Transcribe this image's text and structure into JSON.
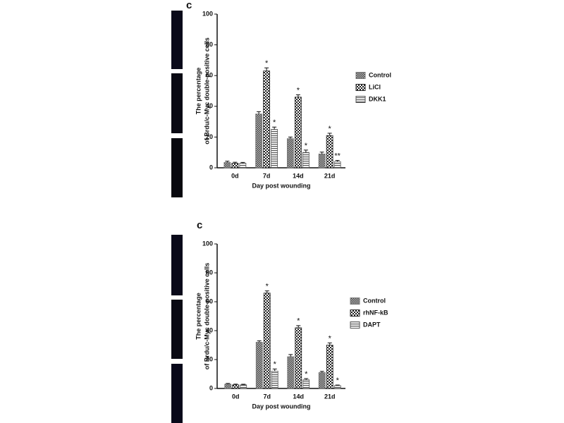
{
  "chart_data": [
    {
      "type": "bar",
      "title": "c",
      "ylabel": [
        "The percentage",
        "of Brdu/c-Myc double-positive cells"
      ],
      "xlabel": "Day post wounding",
      "categories": [
        "0d",
        "7d",
        "14d",
        "21d"
      ],
      "series": [
        {
          "name": "Control",
          "color": "#777777",
          "pattern": "dots",
          "values": [
            3.5,
            35,
            19,
            9
          ],
          "errors": [
            0.8,
            1.5,
            1,
            1.2
          ],
          "significance": [
            null,
            null,
            null,
            null
          ]
        },
        {
          "name": "LiCl",
          "color": "#222222",
          "pattern": "cross",
          "values": [
            3,
            63,
            46,
            21
          ],
          "errors": [
            0.6,
            2,
            1.5,
            1.5
          ],
          "significance": [
            null,
            "*",
            "*",
            "*"
          ]
        },
        {
          "name": "DKK1",
          "color": "#555555",
          "pattern": "hlines",
          "values": [
            3,
            25,
            10,
            4
          ],
          "errors": [
            0.5,
            1.5,
            1.5,
            0.8
          ],
          "significance": [
            null,
            "*",
            "*",
            "**"
          ]
        }
      ],
      "ylim": [
        0,
        100
      ],
      "yticks": [
        0,
        20,
        40,
        60,
        80,
        100
      ],
      "grid": false,
      "legend": "right"
    },
    {
      "type": "bar",
      "title": "c",
      "ylabel": [
        "The percentage",
        "of Brdu/c-Myc double-positive cells"
      ],
      "xlabel": "Day post wounding",
      "categories": [
        "0d",
        "7d",
        "14d",
        "21d"
      ],
      "series": [
        {
          "name": "Control",
          "color": "#777777",
          "pattern": "dots",
          "values": [
            3,
            32,
            22,
            11
          ],
          "errors": [
            0.5,
            1,
            1.5,
            0.8
          ],
          "significance": [
            null,
            null,
            null,
            null
          ]
        },
        {
          "name": "rhNF-kB",
          "color": "#222222",
          "pattern": "cross",
          "values": [
            2.5,
            66,
            42,
            30
          ],
          "errors": [
            0.5,
            1.5,
            1.5,
            1.5
          ],
          "significance": [
            null,
            "*",
            "*",
            "*"
          ]
        },
        {
          "name": "DAPT",
          "color": "#555555",
          "pattern": "hlines",
          "values": [
            2.5,
            12,
            6,
            2
          ],
          "errors": [
            0.4,
            1.5,
            0.8,
            0.4
          ],
          "significance": [
            null,
            "*",
            "*",
            "*"
          ]
        }
      ],
      "ylim": [
        0,
        100
      ],
      "yticks": [
        0,
        20,
        40,
        60,
        80,
        100
      ],
      "grid": false,
      "legend": "right"
    }
  ]
}
